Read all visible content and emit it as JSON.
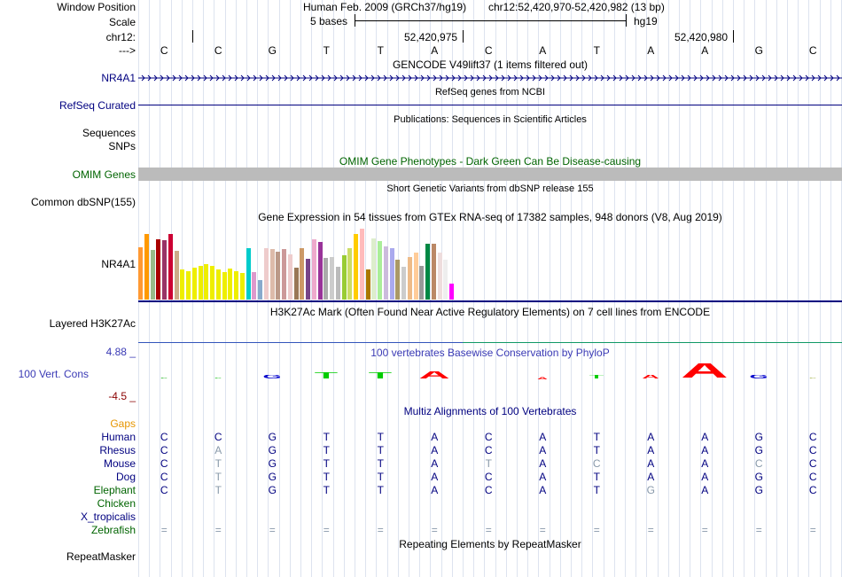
{
  "header": {
    "window_position_label": "Window Position",
    "scale_label": "Scale",
    "chr_label": "chr12:",
    "arrow_label": "--->",
    "assembly_text": "Human Feb. 2009 (GRCh37/hg19)",
    "position_text": "chr12:52,420,970-52,420,982 (13 bp)",
    "scale_text": "5 bases",
    "scale_db": "hg19",
    "coord1": "52,420,975",
    "coord2": "52,420,980"
  },
  "bases": [
    "C",
    "C",
    "G",
    "T",
    "T",
    "A",
    "C",
    "A",
    "T",
    "A",
    "A",
    "G",
    "C"
  ],
  "tracks": {
    "gencode_title": "GENCODE V49lift37 (1 items filtered out)",
    "gencode_label": "NR4A1",
    "refseq_title": "RefSeq genes from NCBI",
    "refseq_label": "RefSeq Curated",
    "pubs_title": "Publications: Sequences in Scientific Articles",
    "sequences_label": "Sequences",
    "snps_label": "SNPs",
    "omim_title": "OMIM Gene Phenotypes - Dark Green Can Be Disease-causing",
    "omim_label": "OMIM Genes",
    "dbsnp_title": "Short Genetic Variants from dbSNP release 155",
    "dbsnp_label": "Common dbSNP(155)",
    "gtex_title": "Gene Expression in 54 tissues from GTEx RNA-seq of 17382 samples, 948 donors (V8, Aug 2019)",
    "gtex_label": "NR4A1",
    "h3k27ac_title": "H3K27Ac Mark (Often Found Near Active Regulatory Elements) on 7 cell lines from ENCODE",
    "h3k27ac_label": "Layered H3K27Ac",
    "phylop_title": "100 vertebrates Basewise Conservation by PhyloP",
    "phylop_label": "100 Vert. Cons",
    "phylop_max": "4.88 _",
    "phylop_min": "-4.5 _",
    "multiz_title": "Multiz Alignments of 100 Vertebrates",
    "gaps_label": "Gaps",
    "repeat_title": "Repeating Elements by RepeatMasker",
    "repeat_label": "RepeatMasker"
  },
  "colors": {
    "link_blue": "#000080",
    "omim_green": "#006400",
    "gaps_orange": "#e69500",
    "phylop_blue": "#3a3ab5",
    "phylop_red": "#8b0000",
    "grid": "#dde3ef"
  },
  "gtex_values": [
    {
      "v": 0.74,
      "c": "#ff9933"
    },
    {
      "v": 0.93,
      "c": "#ff9900"
    },
    {
      "v": 0.7,
      "c": "#99bb88"
    },
    {
      "v": 0.85,
      "c": "#aa0000"
    },
    {
      "v": 0.84,
      "c": "#993366"
    },
    {
      "v": 0.93,
      "c": "#cc0033"
    },
    {
      "v": 0.69,
      "c": "#ccaa88"
    },
    {
      "v": 0.43,
      "c": "#eeee00"
    },
    {
      "v": 0.4,
      "c": "#eeee00"
    },
    {
      "v": 0.45,
      "c": "#eeee00"
    },
    {
      "v": 0.48,
      "c": "#eeee00"
    },
    {
      "v": 0.5,
      "c": "#eeee00"
    },
    {
      "v": 0.47,
      "c": "#eeee00"
    },
    {
      "v": 0.42,
      "c": "#eeee00"
    },
    {
      "v": 0.39,
      "c": "#eeee00"
    },
    {
      "v": 0.44,
      "c": "#eeee00"
    },
    {
      "v": 0.4,
      "c": "#eeee00"
    },
    {
      "v": 0.37,
      "c": "#eeee00"
    },
    {
      "v": 0.73,
      "c": "#00cccc"
    },
    {
      "v": 0.39,
      "c": "#dd99cc"
    },
    {
      "v": 0.28,
      "c": "#88aacc"
    },
    {
      "v": 0.72,
      "c": "#eecccc"
    },
    {
      "v": 0.71,
      "c": "#ddbbaa"
    },
    {
      "v": 0.68,
      "c": "#bb9988"
    },
    {
      "v": 0.71,
      "c": "#cc9999"
    },
    {
      "v": 0.64,
      "c": "#eecccc"
    },
    {
      "v": 0.45,
      "c": "#997755"
    },
    {
      "v": 0.72,
      "c": "#cc9966"
    },
    {
      "v": 0.58,
      "c": "#774488"
    },
    {
      "v": 0.85,
      "c": "#eeaacc"
    },
    {
      "v": 0.81,
      "c": "#993399"
    },
    {
      "v": 0.59,
      "c": "#aaaaaa"
    },
    {
      "v": 0.6,
      "c": "#cccccc"
    },
    {
      "v": 0.46,
      "c": "#bbbbbb"
    },
    {
      "v": 0.62,
      "c": "#99cc33"
    },
    {
      "v": 0.72,
      "c": "#ccdd66"
    },
    {
      "v": 0.93,
      "c": "#ffcc00"
    },
    {
      "v": 1.0,
      "c": "#ffbbbb"
    },
    {
      "v": 0.43,
      "c": "#aa7700"
    },
    {
      "v": 0.86,
      "c": "#ddeecc"
    },
    {
      "v": 0.82,
      "c": "#aaee99"
    },
    {
      "v": 0.75,
      "c": "#ccbbdd"
    },
    {
      "v": 0.73,
      "c": "#aaaaee"
    },
    {
      "v": 0.56,
      "c": "#aa9966"
    },
    {
      "v": 0.46,
      "c": "#cccccc"
    },
    {
      "v": 0.6,
      "c": "#eebb88"
    },
    {
      "v": 0.66,
      "c": "#ffcc99"
    },
    {
      "v": 0.48,
      "c": "#999999"
    },
    {
      "v": 0.79,
      "c": "#008844"
    },
    {
      "v": 0.79,
      "c": "#bb8866"
    },
    {
      "v": 0.66,
      "c": "#eedddd"
    },
    {
      "v": 0.56,
      "c": "#eeeeee"
    },
    {
      "v": 0.22,
      "c": "#ff00ff"
    }
  ],
  "phylop": [
    {
      "letter": "C",
      "h": 2,
      "c": "#00aa00"
    },
    {
      "letter": "C",
      "h": 2,
      "c": "#00bb00"
    },
    {
      "letter": "G",
      "h": 5,
      "c": "#0000cc"
    },
    {
      "letter": "T",
      "h": 8,
      "c": "#00cc00"
    },
    {
      "letter": "T",
      "h": 8,
      "c": "#00cc00"
    },
    {
      "letter": "A",
      "h": 9,
      "c": "#ff0000"
    },
    {
      "letter": "C",
      "h": 0,
      "c": "#0000cc"
    },
    {
      "letter": "A",
      "h": 3,
      "c": "#ff0000"
    },
    {
      "letter": "T",
      "h": 5,
      "c": "#00cc00"
    },
    {
      "letter": "A",
      "h": 5,
      "c": "#ff0000"
    },
    {
      "letter": "A",
      "h": 18,
      "c": "#ff0000"
    },
    {
      "letter": "G",
      "h": 5,
      "c": "#0000cc"
    },
    {
      "letter": "C",
      "h": 2,
      "c": "#99aa33"
    }
  ],
  "species": [
    {
      "name": "Human",
      "seq": [
        "C",
        "C",
        "G",
        "T",
        "T",
        "A",
        "C",
        "A",
        "T",
        "A",
        "A",
        "G",
        "C"
      ],
      "gray": [
        0,
        0,
        0,
        0,
        0,
        0,
        0,
        0,
        0,
        0,
        0,
        0,
        0
      ]
    },
    {
      "name": "Rhesus",
      "seq": [
        "C",
        "A",
        "G",
        "T",
        "T",
        "A",
        "C",
        "A",
        "T",
        "A",
        "A",
        "G",
        "C"
      ],
      "gray": [
        0,
        1,
        0,
        0,
        0,
        0,
        0,
        0,
        0,
        0,
        0,
        0,
        0
      ]
    },
    {
      "name": "Mouse",
      "seq": [
        "C",
        "T",
        "G",
        "T",
        "T",
        "A",
        "T",
        "A",
        "C",
        "A",
        "A",
        "C",
        "C"
      ],
      "gray": [
        0,
        1,
        0,
        0,
        0,
        0,
        1,
        0,
        1,
        0,
        0,
        1,
        0
      ]
    },
    {
      "name": "Dog",
      "seq": [
        "C",
        "T",
        "G",
        "T",
        "T",
        "A",
        "C",
        "A",
        "T",
        "A",
        "A",
        "G",
        "C"
      ],
      "gray": [
        0,
        1,
        0,
        0,
        0,
        0,
        0,
        0,
        0,
        0,
        0,
        0,
        0
      ]
    },
    {
      "name": "Elephant",
      "seq": [
        "C",
        "T",
        "G",
        "T",
        "T",
        "A",
        "C",
        "A",
        "T",
        "G",
        "A",
        "G",
        "C"
      ],
      "gray": [
        0,
        1,
        0,
        0,
        0,
        0,
        0,
        0,
        0,
        1,
        0,
        0,
        0
      ]
    },
    {
      "name": "Chicken",
      "seq": [],
      "gray": []
    },
    {
      "name": "X_tropicalis",
      "seq": [],
      "gray": []
    },
    {
      "name": "Zebrafish",
      "seq": [
        "=",
        "=",
        "=",
        "=",
        "=",
        "=",
        "=",
        "=",
        "=",
        "=",
        "=",
        "=",
        "="
      ],
      "gray": [
        1,
        1,
        1,
        1,
        1,
        1,
        1,
        1,
        1,
        1,
        1,
        1,
        1
      ]
    }
  ]
}
